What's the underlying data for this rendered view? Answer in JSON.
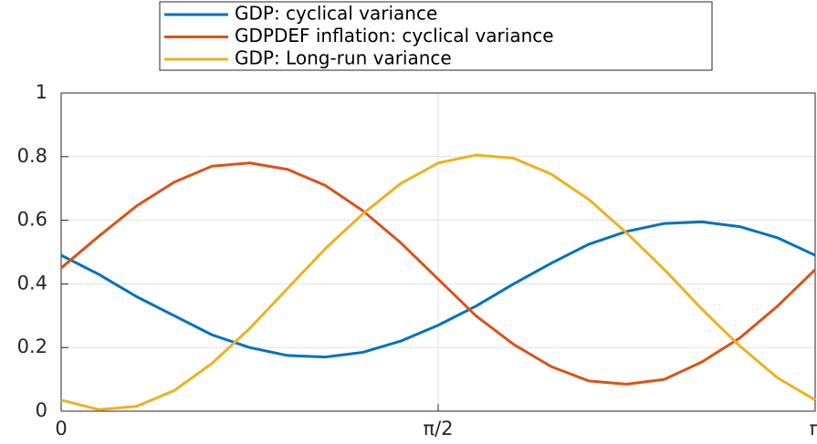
{
  "chart_data": {
    "type": "line",
    "x": [
      0,
      0.1571,
      0.3142,
      0.4712,
      0.6283,
      0.7854,
      0.9425,
      1.0996,
      1.2566,
      1.4137,
      1.5708,
      1.7279,
      1.885,
      2.042,
      2.1991,
      2.3562,
      2.5133,
      2.6704,
      2.8274,
      2.9845,
      3.1416
    ],
    "series": [
      {
        "name": "GDP: cyclical variance",
        "color": "#0072bd",
        "values": [
          0.49,
          0.43,
          0.36,
          0.3,
          0.24,
          0.2,
          0.175,
          0.17,
          0.185,
          0.22,
          0.27,
          0.33,
          0.4,
          0.465,
          0.525,
          0.565,
          0.59,
          0.595,
          0.58,
          0.545,
          0.49
        ]
      },
      {
        "name": "GDPDEF inflation: cyclical variance",
        "color": "#d95319",
        "values": [
          0.45,
          0.55,
          0.645,
          0.72,
          0.77,
          0.78,
          0.76,
          0.71,
          0.63,
          0.53,
          0.415,
          0.3,
          0.21,
          0.14,
          0.095,
          0.085,
          0.1,
          0.155,
          0.23,
          0.33,
          0.445
        ]
      },
      {
        "name": "GDP: Long-run variance",
        "color": "#edb120",
        "values": [
          0.035,
          0.005,
          0.015,
          0.065,
          0.15,
          0.26,
          0.385,
          0.51,
          0.62,
          0.715,
          0.78,
          0.805,
          0.795,
          0.745,
          0.665,
          0.56,
          0.445,
          0.32,
          0.205,
          0.105,
          0.035
        ]
      }
    ],
    "xlim": [
      0,
      3.1416
    ],
    "xticks": [
      0,
      {
        "value": 1.5708,
        "label": "π/2"
      },
      {
        "value": 3.1416,
        "label": "π"
      }
    ],
    "ylim": [
      0,
      1
    ],
    "yticks": [
      0,
      0.2,
      0.4,
      0.6,
      0.8,
      1
    ],
    "grid": true,
    "legend": "top"
  }
}
